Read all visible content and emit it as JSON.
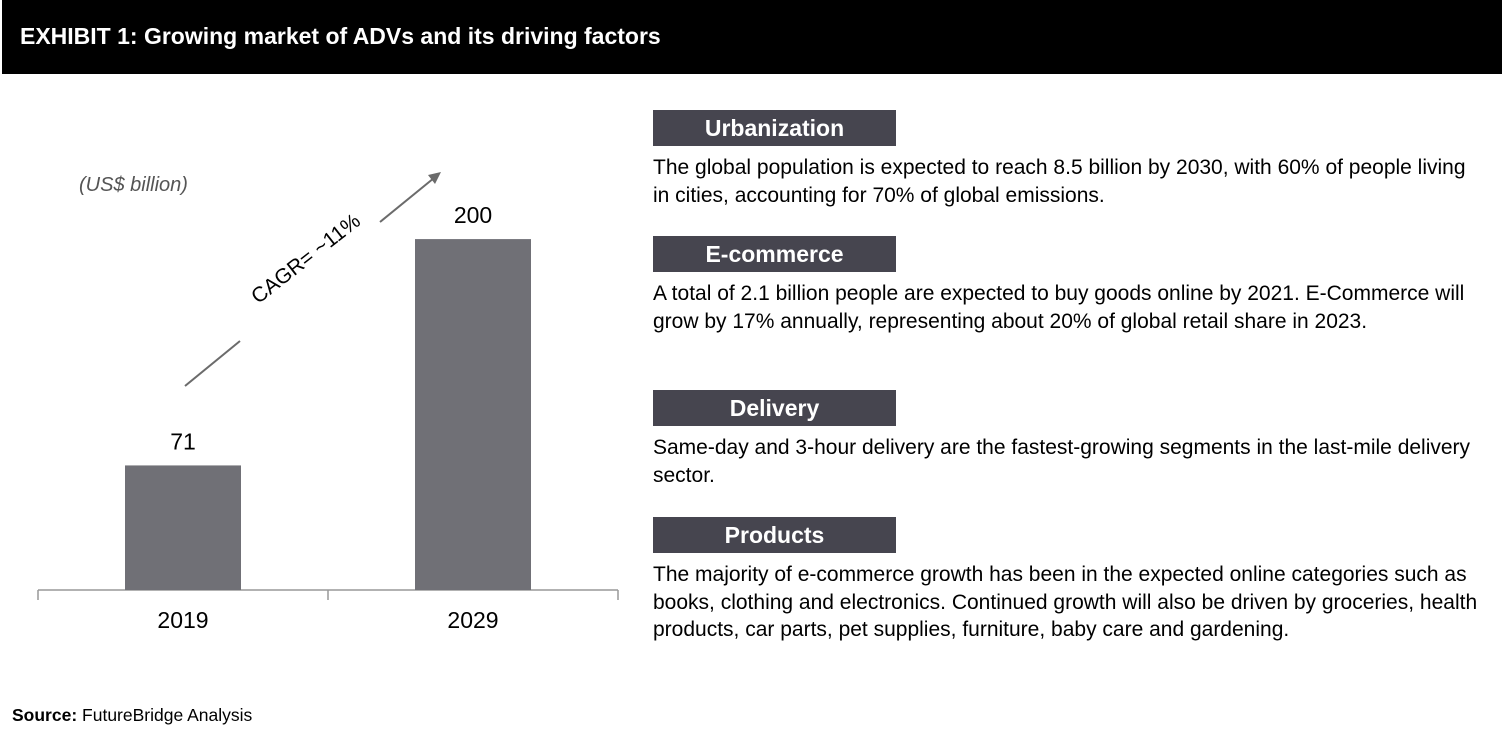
{
  "header": {
    "title": "EXHIBIT 1: Growing market of ADVs and its driving factors"
  },
  "chart_data": {
    "type": "bar",
    "unit_label": "(US$ billion)",
    "categories": [
      "2019",
      "2029"
    ],
    "values": [
      71,
      200
    ],
    "data_labels": [
      "71",
      "200"
    ],
    "annotation": "CAGR= ~11%",
    "ylim": [
      0,
      220
    ],
    "bar_color": "#707076",
    "grid": false
  },
  "factors": [
    {
      "label": "Urbanization",
      "text": "The global population is expected to reach 8.5 billion by 2030, with 60% of people living in cities, accounting for 70% of global emissions."
    },
    {
      "label": "E-commerce",
      "text": "A total of 2.1 billion people are expected to buy goods online by 2021. E-Commerce will grow by 17% annually, representing about 20% of global retail share in 2023."
    },
    {
      "label": "Delivery",
      "text": "Same-day and 3-hour delivery are the fastest-growing segments in the last-mile delivery sector."
    },
    {
      "label": "Products",
      "text": "The majority of e-commerce growth has been in the expected online categories such as books, clothing and electronics. Continued growth will also be driven by groceries, health products, car parts, pet supplies, furniture, baby care and gardening."
    }
  ],
  "source": {
    "label": "Source:",
    "text": "FutureBridge Analysis"
  },
  "colors": {
    "header_bg": "#000000",
    "label_bg": "#46454f",
    "bar": "#707076",
    "arrow": "#6b6b6b"
  }
}
